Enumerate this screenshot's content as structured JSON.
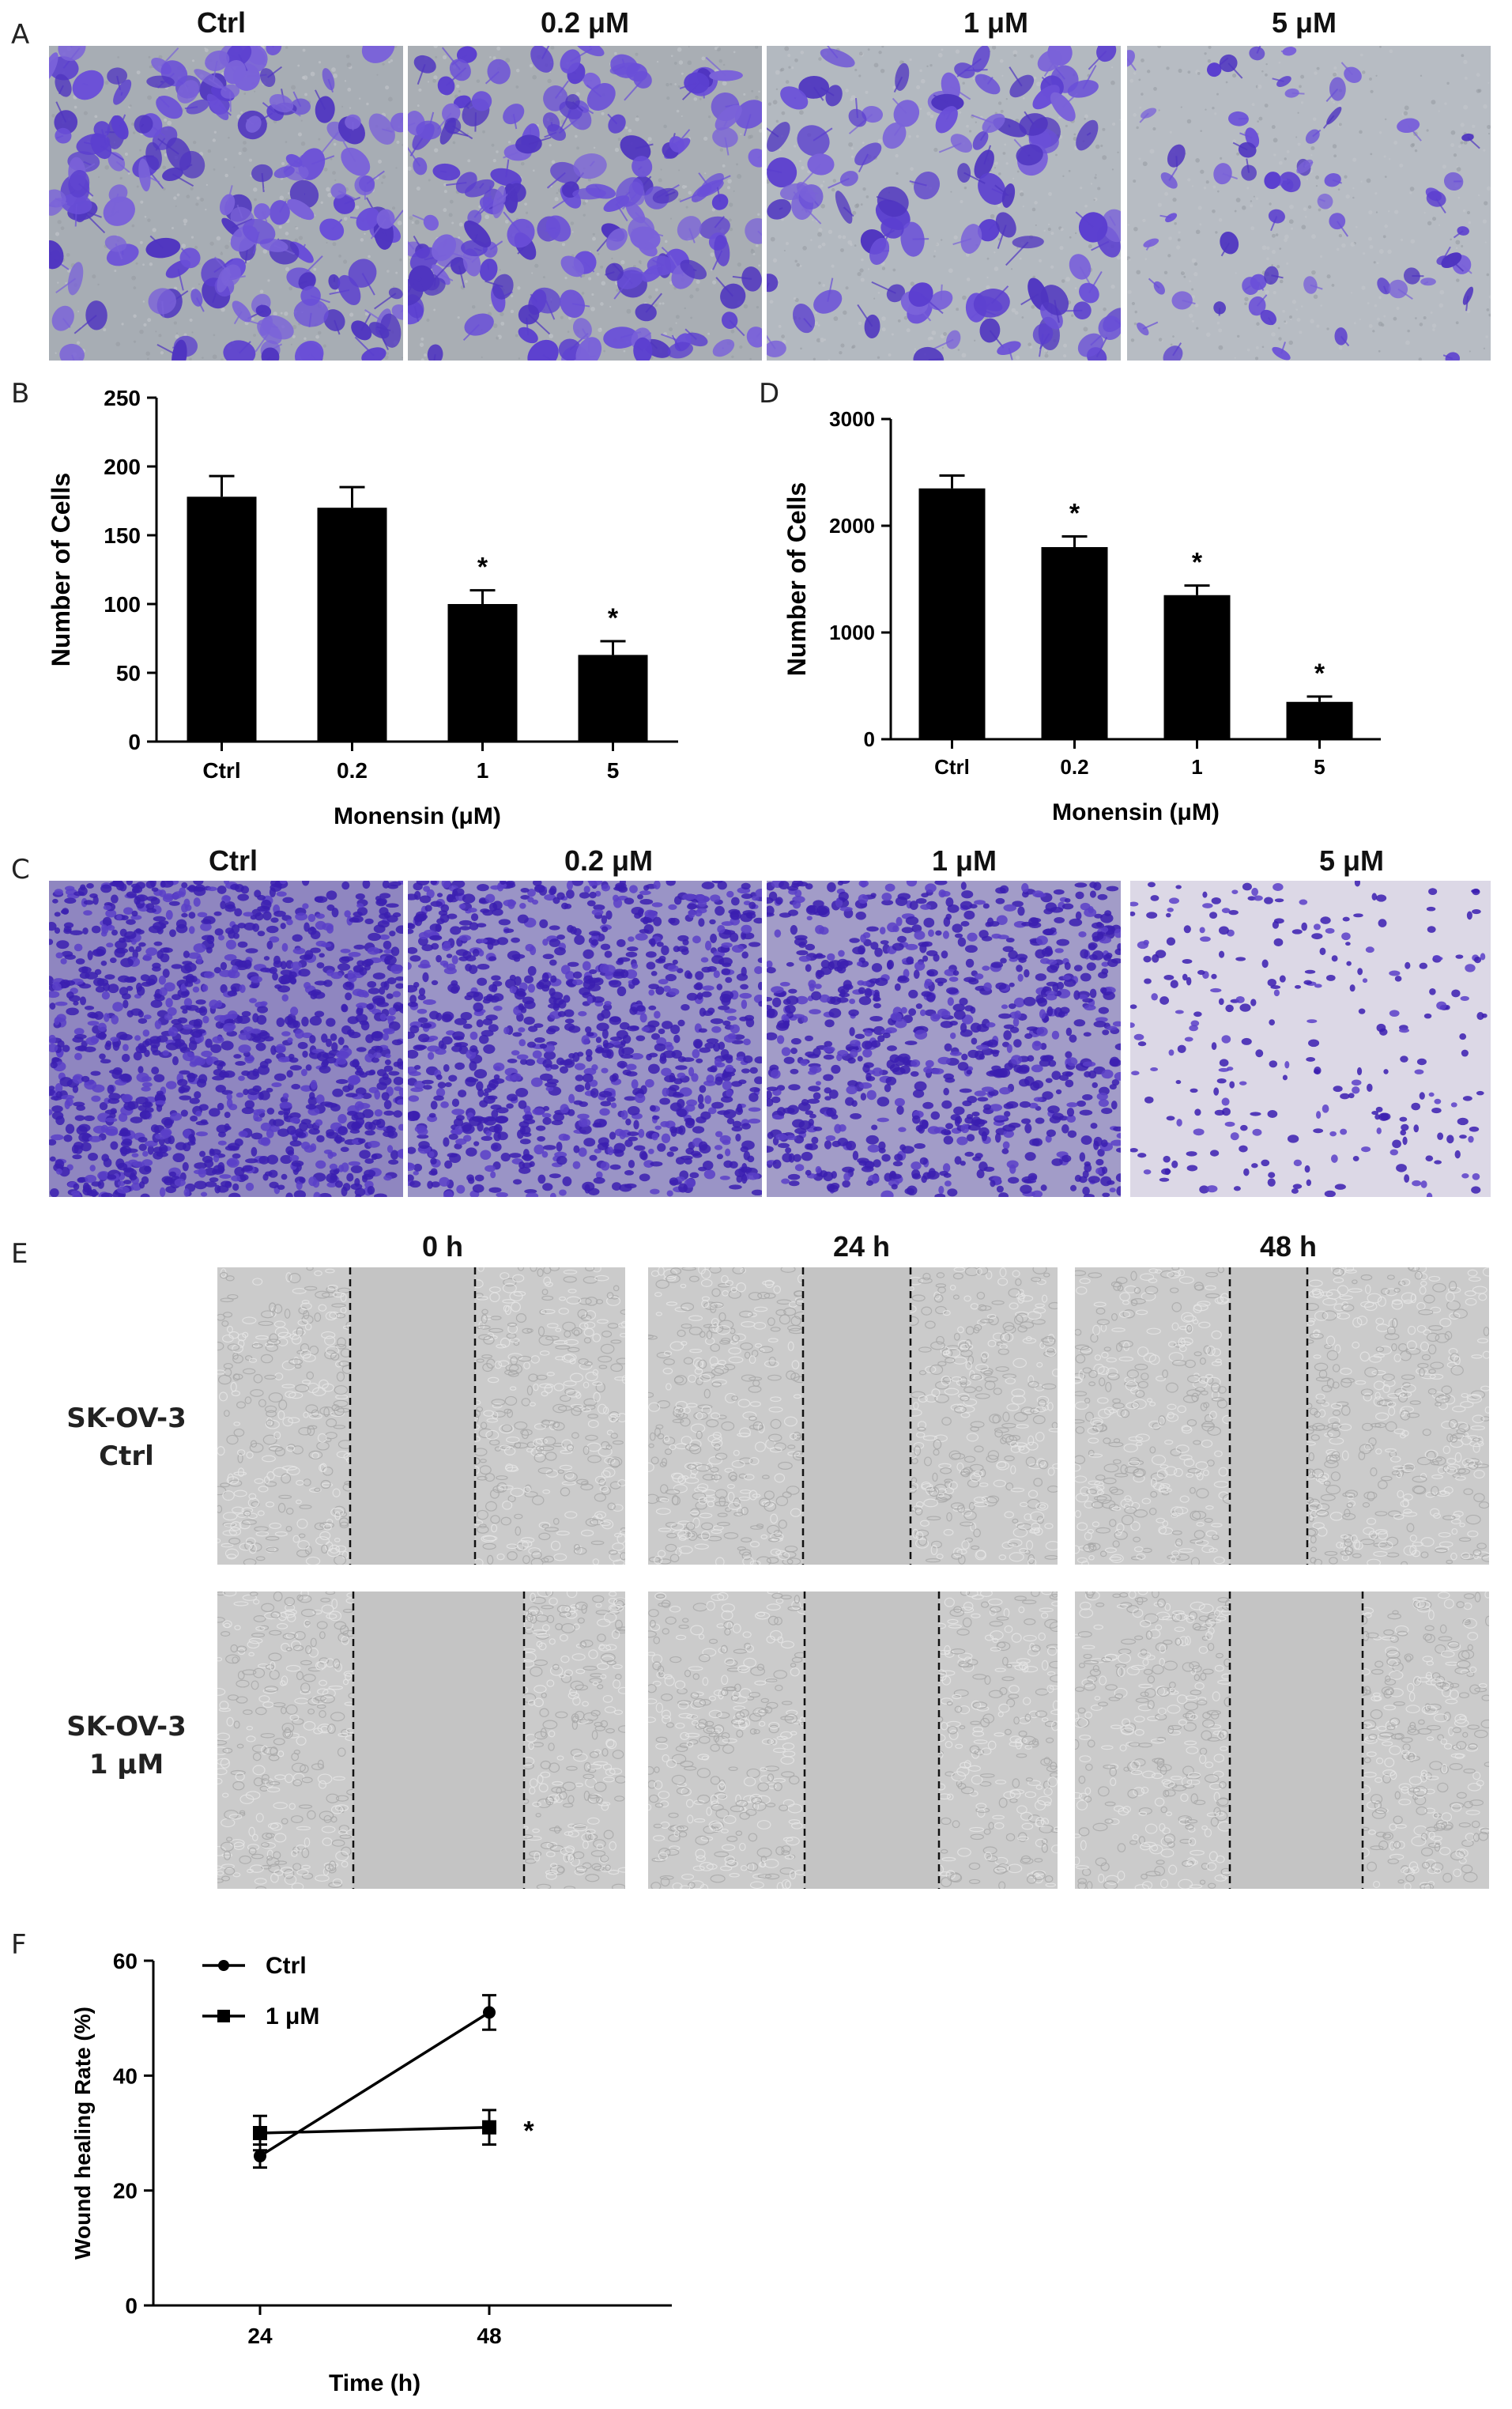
{
  "panels": {
    "A": {
      "letter": "A",
      "labels": [
        "Ctrl",
        "0.2 μM",
        "1 μM",
        "5 μM"
      ]
    },
    "C": {
      "letter": "C",
      "labels": [
        "Ctrl",
        "0.2 μM",
        "1 μM",
        "5 μM"
      ]
    },
    "E": {
      "letter": "E",
      "time_labels": [
        "0 h",
        "24 h",
        "48 h"
      ],
      "row_labels": [
        {
          "line1": "SK-OV-3",
          "line2": "Ctrl"
        },
        {
          "line1": "SK-OV-3",
          "line2": "1 μM"
        }
      ]
    }
  },
  "colors": {
    "stain_purple": "#5a3fd0",
    "bar_fill": "#000000",
    "background_gray": "#a9aeb4",
    "phase_gray": "#c9c9c9"
  },
  "chart_data": [
    {
      "panel": "B",
      "type": "bar",
      "categories": [
        "Ctrl",
        "0.2",
        "1",
        "5"
      ],
      "values": [
        178,
        170,
        100,
        63
      ],
      "errors": [
        15,
        15,
        10,
        10
      ],
      "significance": [
        "",
        "",
        "*",
        "*"
      ],
      "xlabel": "Monensin (μM)",
      "ylabel": "Number of Cells",
      "ylim": [
        0,
        250
      ],
      "yticks": [
        "0",
        "50",
        "100",
        "150",
        "200",
        "250"
      ]
    },
    {
      "panel": "D",
      "type": "bar",
      "categories": [
        "Ctrl",
        "0.2",
        "1",
        "5"
      ],
      "values": [
        2350,
        1800,
        1350,
        350
      ],
      "errors": [
        120,
        100,
        90,
        50
      ],
      "significance": [
        "",
        "*",
        "*",
        "*"
      ],
      "xlabel": "Monensin (μM)",
      "ylabel": "Number of Cells",
      "ylim": [
        0,
        3000
      ],
      "yticks": [
        "0",
        "1000",
        "2000",
        "3000"
      ]
    },
    {
      "panel": "F",
      "type": "line",
      "x": [
        24,
        48
      ],
      "xticks": [
        "24",
        "48"
      ],
      "series": [
        {
          "name": "Ctrl",
          "marker": "circle",
          "values": [
            26,
            51
          ],
          "errors": [
            2,
            3
          ]
        },
        {
          "name": "1 μM",
          "marker": "square",
          "values": [
            30,
            31
          ],
          "errors": [
            3,
            3
          ]
        }
      ],
      "significance": "*",
      "xlabel": "Time (h)",
      "ylabel": "Wound healing Rate (%)",
      "ylim": [
        0,
        60
      ],
      "yticks": [
        "0",
        "20",
        "40",
        "60"
      ],
      "legend_position": "top-left"
    }
  ]
}
